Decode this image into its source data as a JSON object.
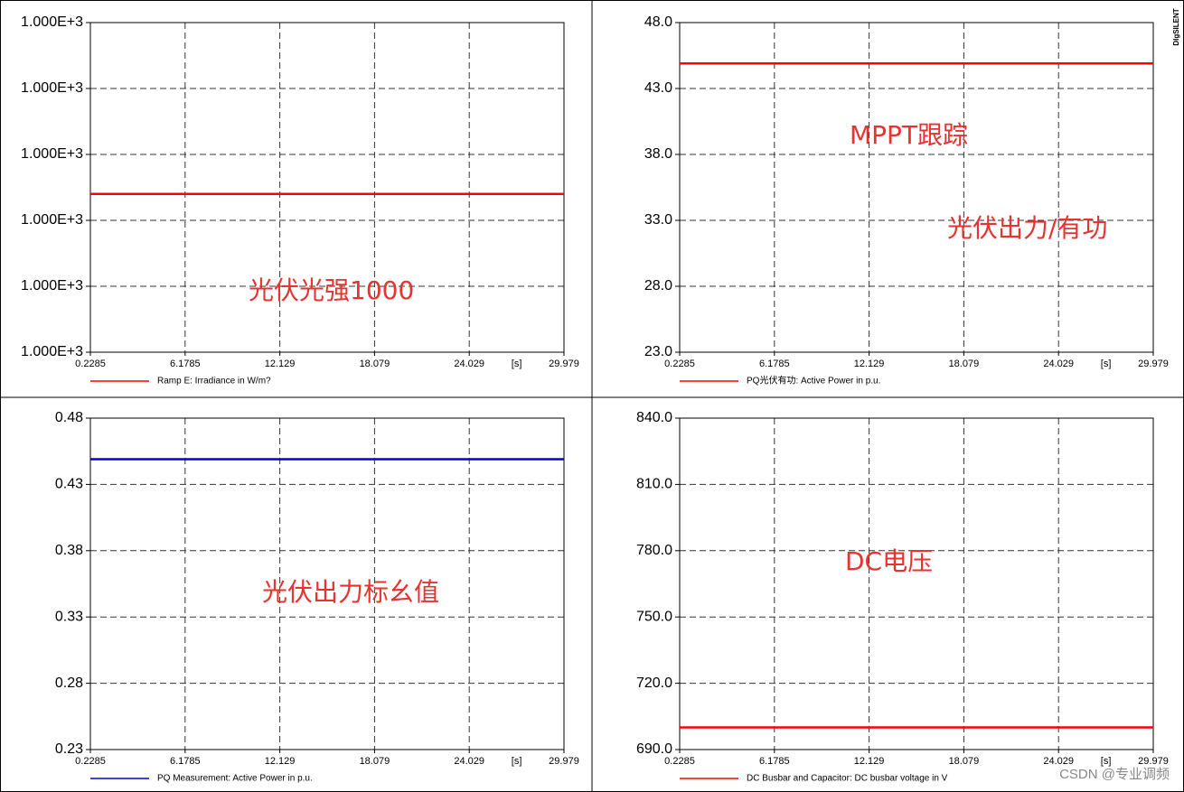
{
  "chart_data": [
    {
      "type": "line",
      "xlabel": "[s]",
      "annotations": [
        "光伏光强1000"
      ],
      "x": [
        0.2285,
        29.979
      ],
      "series": [
        {
          "name": "Ramp E: Irradiance in W/m?",
          "color": "#ff0000",
          "values": [
            1000,
            1000
          ]
        }
      ],
      "xlim": [
        0.2285,
        29.979
      ],
      "xticks": [
        0.2285,
        6.1785,
        12.129,
        18.079,
        24.029,
        29.979
      ],
      "ylim": [
        999.9976,
        1000.0026
      ],
      "yticks": [
        {
          "value": 999.9976,
          "label": "1.000E+3"
        },
        {
          "value": 999.9986,
          "label": "1.000E+3"
        },
        {
          "value": 999.9996,
          "label": "1.000E+3"
        },
        {
          "value": 1000.0006,
          "label": "1.000E+3"
        },
        {
          "value": 1000.0016,
          "label": "1.000E+3"
        },
        {
          "value": 1000.0026,
          "label": "1.000E+3"
        }
      ],
      "grid": true
    },
    {
      "type": "line",
      "xlabel": "[s]",
      "annotations": [
        "MPPT跟踪",
        "光伏出力/有功"
      ],
      "x": [
        0.2285,
        29.979
      ],
      "series": [
        {
          "name": "PQ光伏有功: Active Power in p.u.",
          "color": "#ff0000",
          "values": [
            44.9,
            44.9
          ]
        }
      ],
      "xlim": [
        0.2285,
        29.979
      ],
      "xticks": [
        0.2285,
        6.1785,
        12.129,
        18.079,
        24.029,
        29.979
      ],
      "ylim": [
        23,
        48
      ],
      "yticks": [
        {
          "value": 23,
          "label": "23.0"
        },
        {
          "value": 28,
          "label": "28.0"
        },
        {
          "value": 33,
          "label": "33.0"
        },
        {
          "value": 38,
          "label": "38.0"
        },
        {
          "value": 43,
          "label": "43.0"
        },
        {
          "value": 48,
          "label": "48.0"
        }
      ],
      "grid": true
    },
    {
      "type": "line",
      "xlabel": "[s]",
      "annotations": [
        "光伏出力标幺值"
      ],
      "x": [
        0.2285,
        29.979
      ],
      "series": [
        {
          "name": "PQ Measurement: Active Power in p.u.",
          "color": "#0000dd",
          "values": [
            0.449,
            0.449
          ]
        }
      ],
      "xlim": [
        0.2285,
        29.979
      ],
      "xticks": [
        0.2285,
        6.1785,
        12.129,
        18.079,
        24.029,
        29.979
      ],
      "ylim": [
        0.23,
        0.48
      ],
      "yticks": [
        0.23,
        0.28,
        0.33,
        0.38,
        0.43,
        0.48
      ],
      "grid": true
    },
    {
      "type": "line",
      "xlabel": "[s]",
      "annotations": [
        "DC电压"
      ],
      "x": [
        0.2285,
        29.979
      ],
      "series": [
        {
          "name": "DC Busbar and Capacitor: DC busbar voltage in V",
          "color": "#ff0000",
          "values": [
            700,
            700
          ]
        }
      ],
      "xlim": [
        0.2285,
        29.979
      ],
      "xticks": [
        0.2285,
        6.1785,
        12.129,
        18.079,
        24.029,
        29.979
      ],
      "ylim": [
        690,
        840
      ],
      "yticks": [
        {
          "value": 690,
          "label": "690.0"
        },
        {
          "value": 720,
          "label": "720.0"
        },
        {
          "value": 750,
          "label": "750.0"
        },
        {
          "value": 780,
          "label": "780.0"
        },
        {
          "value": 810,
          "label": "810.0"
        },
        {
          "value": 840,
          "label": "840.0"
        }
      ],
      "grid": true
    }
  ],
  "brand": "DIgSILENT",
  "watermark": "CSDN @专业调频"
}
